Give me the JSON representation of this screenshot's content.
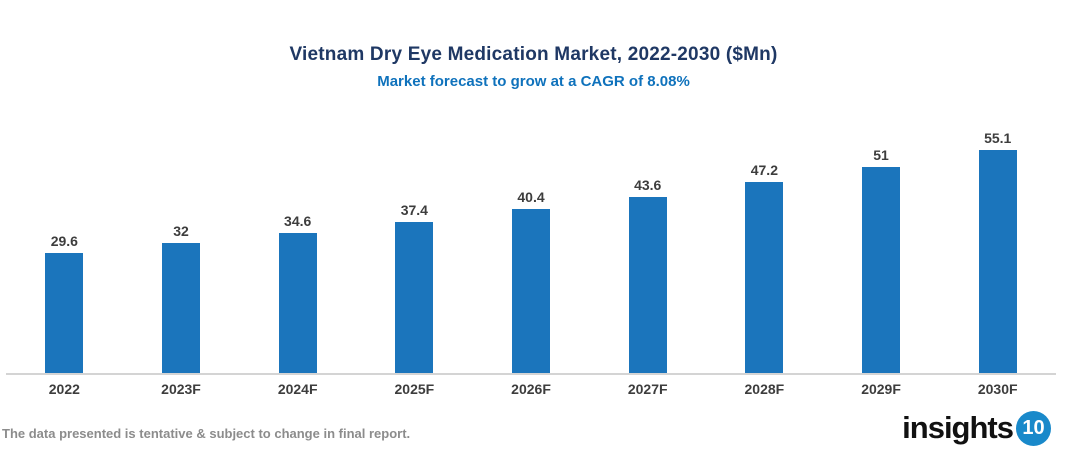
{
  "title": "Vietnam Dry Eye Medication Market, 2022-2030 ($Mn)",
  "subtitle": "Market forecast to grow at a CAGR of 8.08%",
  "footnote": "The data presented is tentative & subject to change in final report.",
  "logo": {
    "text": "insights",
    "badge": "10"
  },
  "colors": {
    "title": "#1F3864",
    "subtitle": "#0F72BC",
    "bar": "#1B75BC",
    "data_label": "#3D3D3D",
    "axis_line": "#D4D4D4",
    "footnote": "#8C8C8C",
    "logo_badge": "#1989CA"
  },
  "chart_data": {
    "type": "bar",
    "title": "Vietnam Dry Eye Medication Market, 2022-2030 ($Mn)",
    "subtitle": "Market forecast to grow at a CAGR of 8.08%",
    "categories": [
      "2022",
      "2023F",
      "2024F",
      "2025F",
      "2026F",
      "2027F",
      "2028F",
      "2029F",
      "2030F"
    ],
    "values": [
      29.6,
      32,
      34.6,
      37.4,
      40.4,
      43.6,
      47.2,
      51,
      55.1
    ],
    "xlabel": "",
    "ylabel": "",
    "ylim": [
      0,
      60
    ],
    "grid": false,
    "legend": "none",
    "data_labels": true,
    "bar_color": "#1B75BC"
  }
}
